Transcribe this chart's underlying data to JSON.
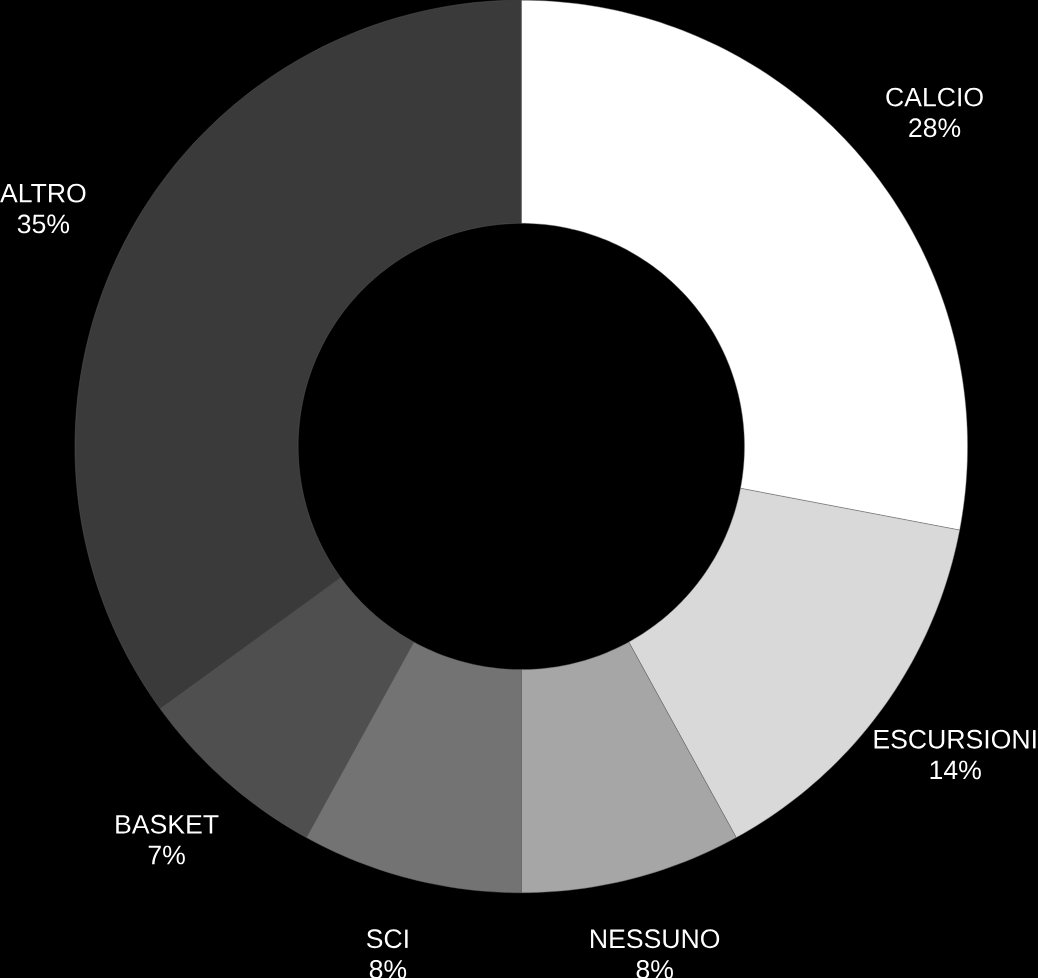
{
  "chart_data": {
    "type": "donut",
    "categories": [
      "CALCIO",
      "ESCURSIONI",
      "NESSUNO",
      "SCI",
      "BASKET",
      "ALTRO"
    ],
    "values": [
      28,
      14,
      8,
      8,
      7,
      35
    ],
    "value_labels": [
      "28%",
      "14%",
      "8%",
      "8%",
      "7%",
      "35%"
    ],
    "colors": [
      "#ffffff",
      "#d9d9d9",
      "#a6a6a6",
      "#737373",
      "#4f4f4f",
      "#3a3a3a"
    ]
  }
}
